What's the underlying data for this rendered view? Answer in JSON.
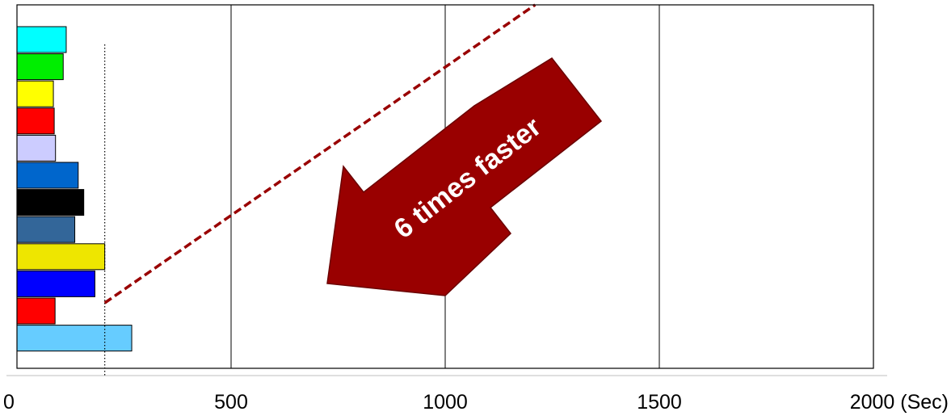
{
  "chart_data": {
    "type": "bar",
    "orientation": "horizontal",
    "title": "",
    "xlabel": "",
    "ylabel": "",
    "xlim": [
      0,
      2000
    ],
    "x_ticks": [
      {
        "value": 0,
        "label": "0"
      },
      {
        "value": 500,
        "label": "500"
      },
      {
        "value": 1000,
        "label": "1000"
      },
      {
        "value": 1500,
        "label": "1500"
      },
      {
        "value": 2000,
        "label": "2000 (Sec)"
      }
    ],
    "grid": "vertical",
    "legend": "none",
    "bars": [
      {
        "value": 115,
        "color": "#00FFFF"
      },
      {
        "value": 108,
        "color": "#00EE00"
      },
      {
        "value": 85,
        "color": "#FFFF00"
      },
      {
        "value": 87,
        "color": "#FF0000"
      },
      {
        "value": 90,
        "color": "#CCCCFF"
      },
      {
        "value": 143,
        "color": "#0066CC"
      },
      {
        "value": 156,
        "color": "#000000"
      },
      {
        "value": 135,
        "color": "#336699"
      },
      {
        "value": 205,
        "color": "#EEE600"
      },
      {
        "value": 182,
        "color": "#0000FF"
      },
      {
        "value": 89,
        "color": "#FF0000"
      },
      {
        "value": 268,
        "color": "#66CCFF"
      }
    ],
    "reference_line": {
      "value": 205,
      "style": "dotted"
    },
    "trend_line": {
      "from": [
        205,
        0.18
      ],
      "to": [
        1210,
        1.0
      ],
      "color": "#990000",
      "style": "dashed"
    },
    "annotation": {
      "text": "6 times faster",
      "shape": "arrow",
      "color": "#990000"
    }
  }
}
